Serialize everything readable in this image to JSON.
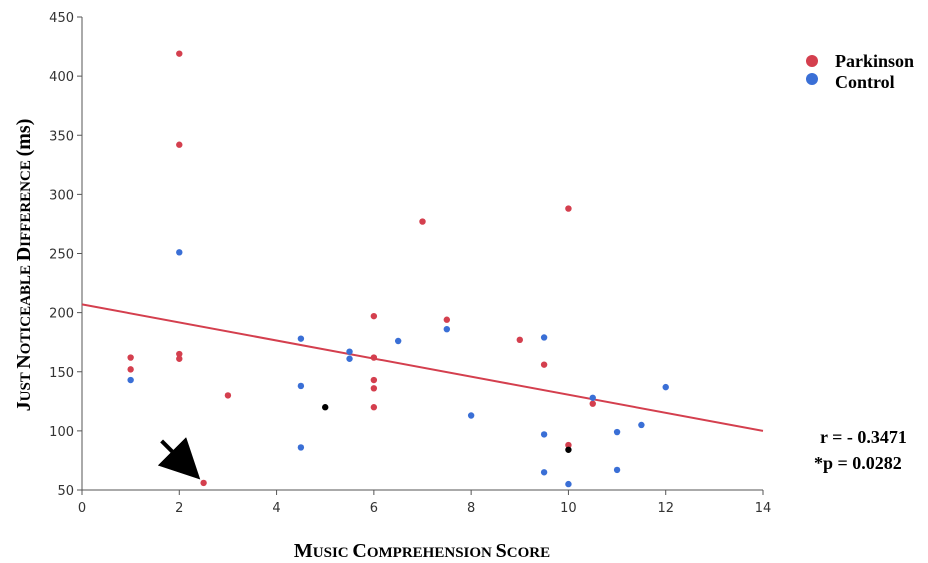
{
  "chart_data": {
    "type": "scatter",
    "xlabel_parts": [
      {
        "big": "M",
        "small": "USIC "
      },
      {
        "big": "C",
        "small": "OMPREHENSION "
      },
      {
        "big": "S",
        "small": "CORE"
      }
    ],
    "ylabel_parts": [
      {
        "big": "J",
        "small": "UST "
      },
      {
        "big": "N",
        "small": "OTICEABLE  "
      },
      {
        "big": "D",
        "small": "IFFERENCE "
      },
      {
        "big": "(",
        "small": ""
      },
      {
        "big": "ms)",
        "small": ""
      }
    ],
    "xlim": [
      0,
      14
    ],
    "ylim": [
      50,
      450
    ],
    "x_ticks": [
      0,
      2,
      4,
      6,
      8,
      10,
      12,
      14
    ],
    "y_ticks": [
      50,
      100,
      150,
      200,
      250,
      300,
      350,
      400,
      450
    ],
    "grid": false,
    "legend_position": "top-right",
    "series": [
      {
        "name": "Parkinson",
        "color": "#d43f4e",
        "points": [
          [
            1,
            162
          ],
          [
            1,
            152
          ],
          [
            2,
            419
          ],
          [
            2,
            342
          ],
          [
            2,
            165
          ],
          [
            2,
            161
          ],
          [
            2.5,
            56
          ],
          [
            3,
            130
          ],
          [
            6,
            197
          ],
          [
            6,
            162
          ],
          [
            6,
            143
          ],
          [
            6,
            136
          ],
          [
            6,
            120
          ],
          [
            7,
            277
          ],
          [
            7.5,
            194
          ],
          [
            9,
            177
          ],
          [
            9.5,
            156
          ],
          [
            10,
            288
          ],
          [
            10,
            88
          ],
          [
            10.5,
            123
          ]
        ]
      },
      {
        "name": "Control",
        "color": "#3a6fd6",
        "points": [
          [
            1,
            143
          ],
          [
            2,
            251
          ],
          [
            4.5,
            178
          ],
          [
            4.5,
            138
          ],
          [
            4.5,
            86
          ],
          [
            5.5,
            167
          ],
          [
            5.5,
            161
          ],
          [
            6.5,
            176
          ],
          [
            7.5,
            186
          ],
          [
            8,
            113
          ],
          [
            9.5,
            179
          ],
          [
            9.5,
            97
          ],
          [
            9.5,
            65
          ],
          [
            10,
            55
          ],
          [
            10.5,
            128
          ],
          [
            11,
            99
          ],
          [
            11,
            67
          ],
          [
            11.5,
            105
          ],
          [
            12,
            137
          ]
        ]
      },
      {
        "name": "",
        "color": "#000000",
        "points": [
          [
            5,
            120
          ],
          [
            10,
            84
          ]
        ]
      }
    ],
    "regression_line": {
      "x": [
        0,
        14
      ],
      "y": [
        207,
        100
      ],
      "color": "#d43f4e"
    },
    "annotations": {
      "r": "r = - 0.3471",
      "p": "*p = 0.0282",
      "arrow_target": [
        2.5,
        56
      ]
    }
  }
}
